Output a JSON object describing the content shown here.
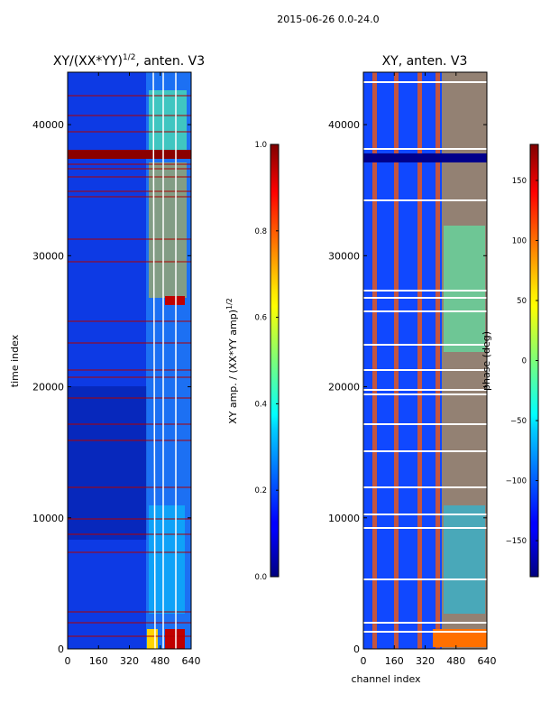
{
  "chart_data": [
    {
      "type": "heatmap",
      "title": "XY/(XX*YY)^1/2, anten. V3",
      "title_main": "XY/(XX*YY)",
      "title_exp": "1/2",
      "title_rest": ", anten. V3",
      "xlabel": "",
      "ylabel": "time index",
      "xlim": [
        0,
        640
      ],
      "ylim": [
        0,
        44000
      ],
      "xticks": [
        "0",
        "160",
        "320",
        "480",
        "640"
      ],
      "yticks": [
        "0",
        "10000",
        "20000",
        "30000",
        "40000"
      ],
      "colorbar": {
        "label_main": "XY amp. / (XX*YY amp)",
        "label_exp": "1/2",
        "range": [
          0.0,
          1.0
        ],
        "ticks": [
          "0.0",
          "0.2",
          "0.4",
          "0.6",
          "0.8",
          "1.0"
        ]
      }
    },
    {
      "type": "heatmap",
      "title": "XY, anten. V3",
      "xlabel": "channel index",
      "ylabel": "",
      "xlim": [
        0,
        640
      ],
      "ylim": [
        0,
        44000
      ],
      "xticks": [
        "0",
        "160",
        "320",
        "480",
        "640"
      ],
      "yticks": [
        "0",
        "10000",
        "20000",
        "30000",
        "40000"
      ],
      "colorbar": {
        "label": "phase (deg)",
        "range": [
          -180,
          180
        ],
        "ticks": [
          "−150",
          "−100",
          "−50",
          "0",
          "50",
          "100",
          "150"
        ]
      }
    }
  ],
  "suptitle": "2015-06-26 0.0-24.0"
}
